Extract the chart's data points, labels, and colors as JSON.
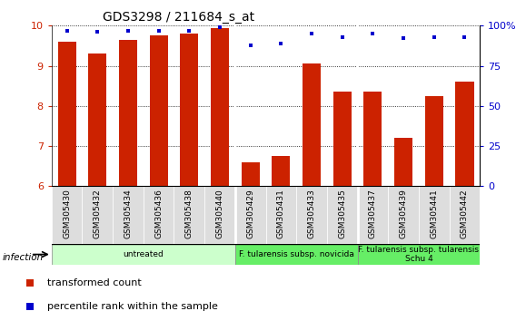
{
  "title": "GDS3298 / 211684_s_at",
  "samples": [
    "GSM305430",
    "GSM305432",
    "GSM305434",
    "GSM305436",
    "GSM305438",
    "GSM305440",
    "GSM305429",
    "GSM305431",
    "GSM305433",
    "GSM305435",
    "GSM305437",
    "GSM305439",
    "GSM305441",
    "GSM305442"
  ],
  "transformed_count": [
    9.6,
    9.3,
    9.65,
    9.75,
    9.8,
    9.95,
    6.6,
    6.75,
    9.05,
    8.35,
    8.35,
    7.2,
    8.25,
    8.6
  ],
  "percentile_rank": [
    97,
    96,
    97,
    97,
    97,
    99,
    88,
    89,
    95,
    93,
    95,
    92,
    93,
    93
  ],
  "ylim": [
    6,
    10
  ],
  "yticks": [
    6,
    7,
    8,
    9,
    10
  ],
  "right_yticks": [
    0,
    25,
    50,
    75,
    100
  ],
  "right_ylim": [
    0,
    100
  ],
  "bar_color": "#cc2200",
  "dot_color": "#0000cc",
  "group_info": [
    {
      "label": "untreated",
      "start": 0,
      "end": 6,
      "color": "#ccffcc"
    },
    {
      "label": "F. tularensis subsp. novicida",
      "start": 6,
      "end": 10,
      "color": "#66ee66"
    },
    {
      "label": "F. tularensis subsp. tularensis\nSchu 4",
      "start": 10,
      "end": 14,
      "color": "#66ee66"
    }
  ],
  "infection_label": "infection",
  "legend_bar_label": "transformed count",
  "legend_dot_label": "percentile rank within the sample",
  "background_color": "#ffffff",
  "plot_bg_color": "#ffffff",
  "grid_color": "#000000",
  "spine_color": "#000000",
  "xtick_bg": "#dddddd"
}
